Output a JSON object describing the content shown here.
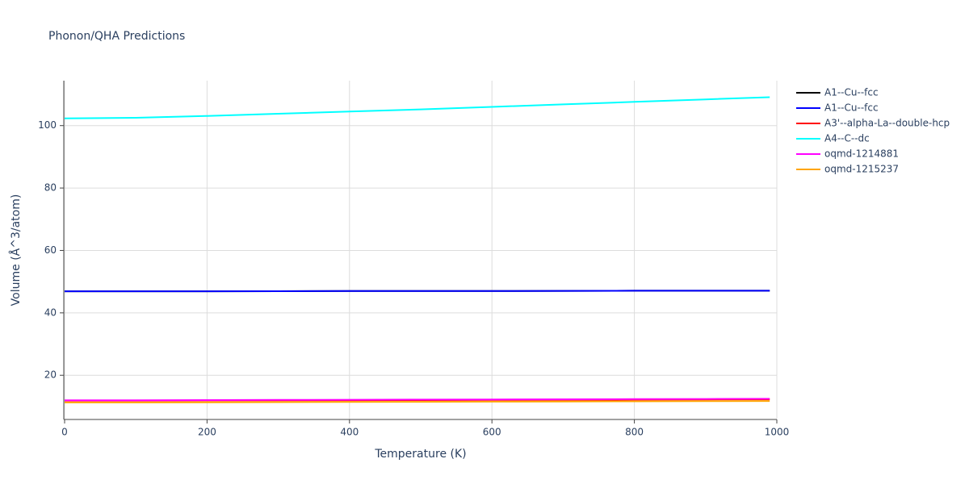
{
  "chart_data": {
    "type": "line",
    "title": "Phonon/QHA Predictions",
    "x_label": "Temperature (K)",
    "y_label": "Volume (Å^3/atom)",
    "x": [
      0,
      100,
      200,
      300,
      400,
      500,
      600,
      700,
      800,
      900,
      990
    ],
    "series": [
      {
        "name": "A1--Cu--fcc",
        "color": "#000000",
        "values": [
          46.9,
          46.9,
          46.9,
          46.95,
          47.0,
          47.0,
          47.0,
          47.05,
          47.1,
          47.1,
          47.1
        ]
      },
      {
        "name": "A1--Cu--fcc",
        "color": "#0000ff",
        "values": [
          46.9,
          46.9,
          46.9,
          46.95,
          47.0,
          47.0,
          47.0,
          47.05,
          47.1,
          47.1,
          47.1
        ]
      },
      {
        "name": "A3'--alpha-La--double-hcp",
        "color": "#ff0000",
        "values": [
          11.9,
          11.9,
          11.95,
          12.0,
          12.0,
          12.05,
          12.1,
          12.15,
          12.2,
          12.25,
          12.3
        ]
      },
      {
        "name": "A4--C--dc",
        "color": "#00ffff",
        "values": [
          102.3,
          102.5,
          103.1,
          103.8,
          104.5,
          105.2,
          106.0,
          106.8,
          107.6,
          108.4,
          109.1
        ]
      },
      {
        "name": "oqmd-1214881",
        "color": "#ff00ff",
        "values": [
          12.0,
          12.0,
          12.05,
          12.1,
          12.15,
          12.2,
          12.25,
          12.3,
          12.35,
          12.4,
          12.45
        ]
      },
      {
        "name": "oqmd-1215237",
        "color": "#ffa500",
        "values": [
          11.3,
          11.3,
          11.35,
          11.4,
          11.45,
          11.5,
          11.55,
          11.6,
          11.65,
          11.7,
          11.75
        ]
      }
    ],
    "xlim": [
      0,
      1000
    ],
    "xticks": [
      0,
      200,
      400,
      600,
      800,
      1000
    ],
    "ylim": [
      6.1,
      114.4
    ],
    "yticks": [
      20,
      40,
      60,
      80,
      100
    ],
    "grid": true,
    "legend": "right"
  }
}
